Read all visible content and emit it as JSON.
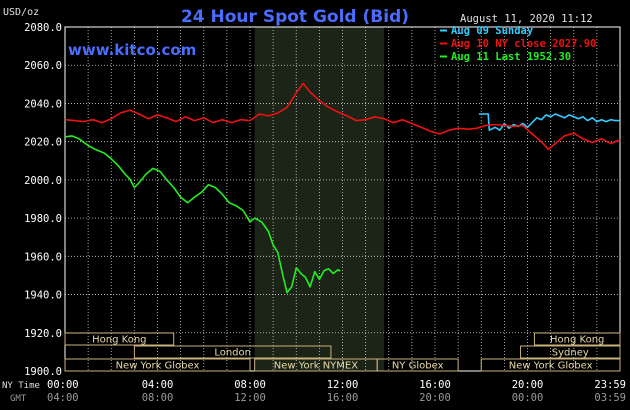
{
  "chart_data": {
    "type": "line",
    "title": "24 Hour Spot Gold (Bid)",
    "ylabel": "USD/oz",
    "timestamp": "August 11, 2020 11:12",
    "source": "www.kitco.com",
    "ylim": [
      1900,
      2080
    ],
    "yticks": [
      "2080.0",
      "2060.0",
      "2040.0",
      "2020.0",
      "2000.0",
      "1980.0",
      "1960.0",
      "1940.0",
      "1920.0",
      "1900.0"
    ],
    "xlim_hours": [
      0,
      24
    ],
    "xticks": [
      "00:00",
      "04:00",
      "08:00",
      "12:00",
      "16:00",
      "20:00",
      "23:59"
    ],
    "xticks_gmt": [
      "04:00",
      "08:00",
      "12:00",
      "16:00",
      "20:00",
      "00:00",
      "03:59"
    ],
    "x_row1_label": "NY Time",
    "x_row2_label": "GMT",
    "grid": true,
    "legend_position": "top-right",
    "highlight_hours": [
      8.2,
      13.8
    ],
    "series": [
      {
        "name": "Aug 09 Sunday",
        "color": "#33ccff",
        "points": [
          [
            17.9,
            2034.5
          ],
          [
            18.3,
            2034.5
          ],
          [
            18.35,
            2026.0
          ],
          [
            18.6,
            2027.5
          ],
          [
            18.8,
            2026.0
          ],
          [
            19.0,
            2029.5
          ],
          [
            19.2,
            2027.0
          ],
          [
            19.4,
            2029.0
          ],
          [
            19.6,
            2028.0
          ],
          [
            19.8,
            2029.5
          ],
          [
            20.0,
            2027.5
          ],
          [
            20.2,
            2030.0
          ],
          [
            20.4,
            2032.5
          ],
          [
            20.6,
            2031.5
          ],
          [
            20.8,
            2034.0
          ],
          [
            21.0,
            2033.0
          ],
          [
            21.2,
            2034.5
          ],
          [
            21.4,
            2033.5
          ],
          [
            21.6,
            2032.5
          ],
          [
            21.8,
            2034.0
          ],
          [
            22.0,
            2033.0
          ],
          [
            22.2,
            2032.0
          ],
          [
            22.4,
            2033.0
          ],
          [
            22.6,
            2031.0
          ],
          [
            22.8,
            2032.5
          ],
          [
            23.0,
            2030.5
          ],
          [
            23.2,
            2031.5
          ],
          [
            23.4,
            2030.5
          ],
          [
            23.6,
            2031.5
          ],
          [
            23.8,
            2031.0
          ],
          [
            24.0,
            2031.0
          ]
        ]
      },
      {
        "name": "Aug 10 NY close 2027.90",
        "color": "#ee1111",
        "points": [
          [
            0.0,
            2031.5
          ],
          [
            0.4,
            2031.0
          ],
          [
            0.8,
            2030.5
          ],
          [
            1.2,
            2031.5
          ],
          [
            1.6,
            2030.0
          ],
          [
            2.0,
            2032.0
          ],
          [
            2.4,
            2035.0
          ],
          [
            2.8,
            2036.5
          ],
          [
            3.2,
            2034.5
          ],
          [
            3.6,
            2032.0
          ],
          [
            4.0,
            2034.0
          ],
          [
            4.4,
            2032.5
          ],
          [
            4.8,
            2030.5
          ],
          [
            5.2,
            2033.0
          ],
          [
            5.6,
            2031.0
          ],
          [
            6.0,
            2032.5
          ],
          [
            6.4,
            2030.0
          ],
          [
            6.8,
            2031.5
          ],
          [
            7.2,
            2030.0
          ],
          [
            7.6,
            2031.5
          ],
          [
            8.0,
            2031.0
          ],
          [
            8.4,
            2034.5
          ],
          [
            8.8,
            2033.5
          ],
          [
            9.2,
            2035.0
          ],
          [
            9.6,
            2038.0
          ],
          [
            10.0,
            2045.5
          ],
          [
            10.3,
            2050.5
          ],
          [
            10.6,
            2046.0
          ],
          [
            11.0,
            2041.5
          ],
          [
            11.4,
            2038.0
          ],
          [
            11.8,
            2035.5
          ],
          [
            12.2,
            2033.5
          ],
          [
            12.6,
            2031.0
          ],
          [
            13.0,
            2031.5
          ],
          [
            13.4,
            2033.0
          ],
          [
            13.8,
            2032.0
          ],
          [
            14.2,
            2030.0
          ],
          [
            14.6,
            2031.5
          ],
          [
            15.0,
            2029.5
          ],
          [
            15.4,
            2027.5
          ],
          [
            15.8,
            2025.5
          ],
          [
            16.2,
            2024.0
          ],
          [
            16.6,
            2026.0
          ],
          [
            17.0,
            2027.0
          ],
          [
            17.4,
            2026.5
          ],
          [
            17.8,
            2027.0
          ],
          [
            18.2,
            2028.5
          ],
          [
            18.6,
            2029.0
          ],
          [
            19.0,
            2028.5
          ],
          [
            19.4,
            2028.0
          ],
          [
            19.8,
            2028.5
          ],
          [
            20.2,
            2024.0
          ],
          [
            20.6,
            2020.0
          ],
          [
            20.9,
            2016.0
          ],
          [
            21.2,
            2019.0
          ],
          [
            21.6,
            2023.0
          ],
          [
            22.0,
            2024.5
          ],
          [
            22.4,
            2021.5
          ],
          [
            22.8,
            2019.5
          ],
          [
            23.2,
            2021.5
          ],
          [
            23.6,
            2019.0
          ],
          [
            24.0,
            2021.0
          ]
        ]
      },
      {
        "name": "Aug 11 Last 1952.30",
        "color": "#22ee22",
        "points": [
          [
            0.0,
            2022.5
          ],
          [
            0.3,
            2023.0
          ],
          [
            0.6,
            2021.5
          ],
          [
            1.0,
            2018.0
          ],
          [
            1.3,
            2016.0
          ],
          [
            1.7,
            2014.0
          ],
          [
            2.0,
            2011.0
          ],
          [
            2.3,
            2007.5
          ],
          [
            2.6,
            2003.0
          ],
          [
            2.8,
            2000.5
          ],
          [
            3.0,
            1996.0
          ],
          [
            3.2,
            1998.5
          ],
          [
            3.5,
            2003.0
          ],
          [
            3.8,
            2006.0
          ],
          [
            4.1,
            2004.5
          ],
          [
            4.4,
            2000.0
          ],
          [
            4.7,
            1996.0
          ],
          [
            5.0,
            1991.0
          ],
          [
            5.3,
            1988.0
          ],
          [
            5.6,
            1991.0
          ],
          [
            5.9,
            1993.5
          ],
          [
            6.2,
            1997.5
          ],
          [
            6.5,
            1996.0
          ],
          [
            6.8,
            1992.5
          ],
          [
            7.1,
            1988.0
          ],
          [
            7.4,
            1986.5
          ],
          [
            7.7,
            1984.0
          ],
          [
            8.0,
            1978.0
          ],
          [
            8.2,
            1980.0
          ],
          [
            8.5,
            1978.0
          ],
          [
            8.8,
            1973.0
          ],
          [
            9.0,
            1966.0
          ],
          [
            9.2,
            1962.0
          ],
          [
            9.4,
            1951.0
          ],
          [
            9.6,
            1941.0
          ],
          [
            9.8,
            1944.0
          ],
          [
            10.0,
            1954.0
          ],
          [
            10.2,
            1951.0
          ],
          [
            10.4,
            1949.0
          ],
          [
            10.6,
            1944.0
          ],
          [
            10.8,
            1952.0
          ],
          [
            11.0,
            1948.0
          ],
          [
            11.2,
            1952.5
          ],
          [
            11.4,
            1953.5
          ],
          [
            11.6,
            1951.0
          ],
          [
            11.8,
            1953.0
          ],
          [
            11.9,
            1952.3
          ]
        ]
      }
    ],
    "sessions": {
      "row1": [
        {
          "label": "Hong Kong",
          "start": -1.0,
          "end": 4.7
        },
        {
          "label": "Hong Kong",
          "start": 20.3,
          "end": 24.0
        }
      ],
      "row2": [
        {
          "label": "London",
          "start": 3.0,
          "end": 11.5
        },
        {
          "label": "Sydney",
          "start": 19.7,
          "end": 24.0
        }
      ],
      "row3": [
        {
          "label": "New York Globex",
          "start": 0.0,
          "end": 8.0
        },
        {
          "label": "New York NYMEX",
          "start": 8.2,
          "end": 13.5
        },
        {
          "label": "NY Globex",
          "start": 13.5,
          "end": 17.0
        },
        {
          "label": "New York Globex",
          "start": 18.0,
          "end": 24.0
        }
      ]
    }
  }
}
